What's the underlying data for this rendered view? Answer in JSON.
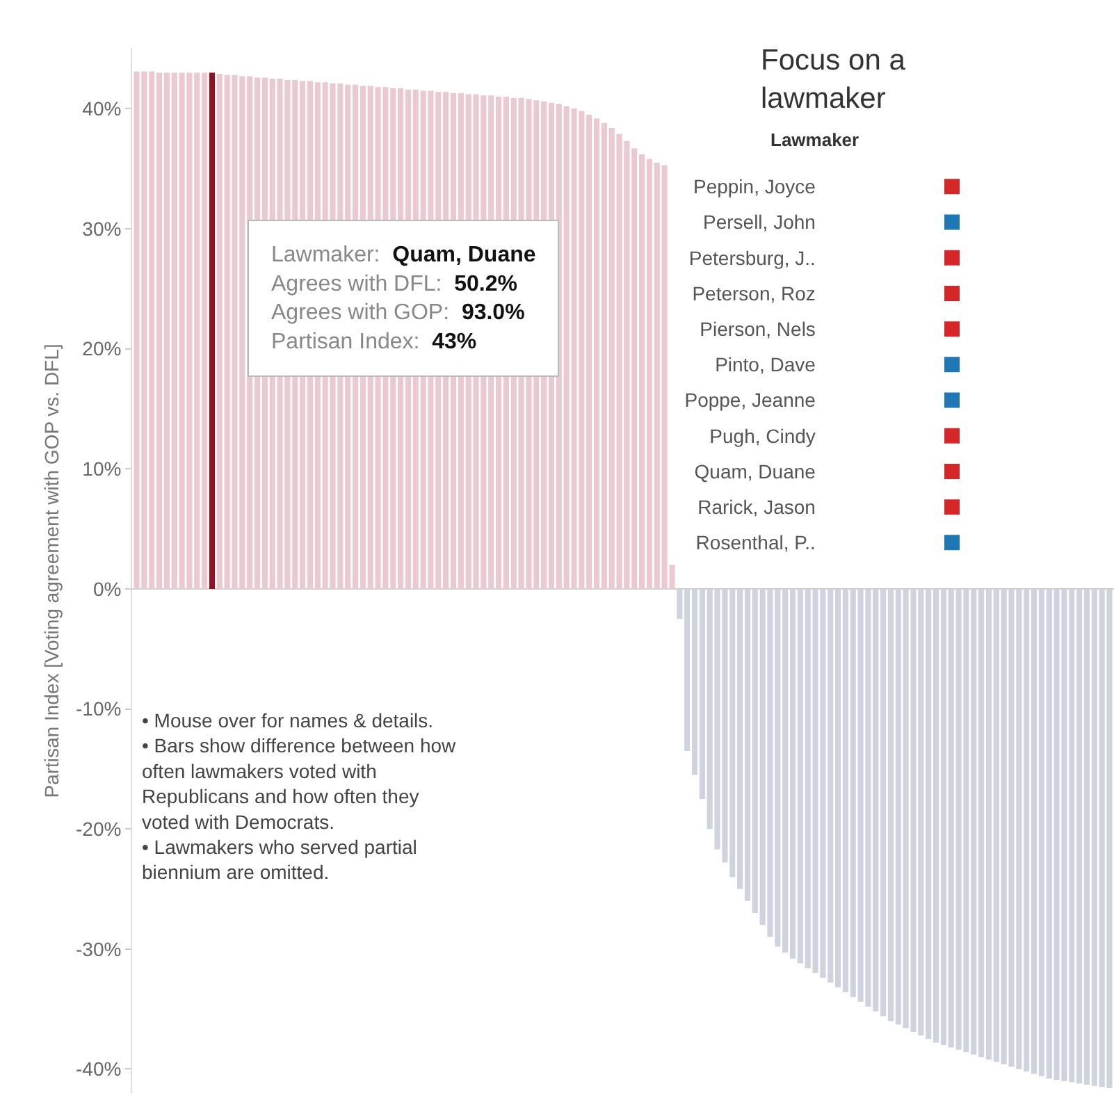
{
  "chart_data": [
    {
      "type": "bar",
      "ylabel": "Partisan Index [Voting agreement with GOP vs. DFL]",
      "categories": [
        null,
        null,
        null,
        null,
        null,
        null,
        null,
        null,
        null,
        null,
        null,
        null,
        null,
        null,
        null,
        null,
        null,
        null,
        null,
        null,
        null,
        null,
        null,
        null,
        null,
        null,
        null,
        null,
        null,
        null,
        null,
        null,
        null,
        null,
        null,
        null,
        null,
        null,
        null,
        null,
        null,
        null,
        null,
        null,
        null,
        null,
        null,
        null,
        null,
        null,
        null,
        null,
        null,
        null,
        null,
        null,
        null,
        null,
        null,
        null,
        null,
        null,
        null,
        null,
        null,
        null,
        null,
        null,
        null,
        null,
        null,
        null,
        null,
        null,
        null,
        null,
        null,
        null,
        null,
        null,
        null,
        null,
        null,
        null,
        null,
        null,
        null,
        null,
        null,
        null,
        null,
        null,
        null,
        null,
        null,
        null,
        null,
        null,
        null,
        null,
        null,
        null,
        null,
        null,
        null,
        null,
        null,
        null,
        null,
        null,
        null,
        null,
        null,
        null,
        null,
        null,
        null,
        null,
        null,
        null,
        null,
        null,
        null,
        null,
        null,
        null,
        null,
        null,
        null,
        null
      ],
      "values": [
        43.1,
        43.1,
        43.1,
        43.0,
        43.0,
        43.0,
        43.0,
        43.0,
        43.0,
        43.0,
        43.0,
        42.9,
        42.8,
        42.8,
        42.7,
        42.7,
        42.6,
        42.6,
        42.5,
        42.5,
        42.4,
        42.4,
        42.3,
        42.3,
        42.2,
        42.2,
        42.1,
        42.1,
        42.0,
        42.0,
        41.9,
        41.9,
        41.8,
        41.8,
        41.7,
        41.7,
        41.6,
        41.6,
        41.5,
        41.5,
        41.4,
        41.4,
        41.3,
        41.3,
        41.2,
        41.2,
        41.1,
        41.1,
        41.0,
        41.0,
        40.9,
        40.9,
        40.8,
        40.7,
        40.6,
        40.5,
        40.4,
        40.2,
        40.0,
        39.8,
        39.5,
        39.2,
        38.8,
        38.4,
        37.9,
        37.3,
        36.7,
        36.2,
        35.8,
        35.5,
        35.3,
        2.0,
        -2.5,
        -13.5,
        -15.5,
        -17.5,
        -20.0,
        -21.7,
        -22.8,
        -24.0,
        -25.0,
        -26.0,
        -27.0,
        -28.0,
        -29.0,
        -29.8,
        -30.3,
        -30.8,
        -31.2,
        -31.6,
        -32.0,
        -32.4,
        -32.8,
        -33.2,
        -33.6,
        -34.0,
        -34.4,
        -34.8,
        -35.2,
        -35.6,
        -36.0,
        -36.3,
        -36.6,
        -36.9,
        -37.2,
        -37.5,
        -37.8,
        -38.0,
        -38.2,
        -38.4,
        -38.6,
        -38.8,
        -39.0,
        -39.2,
        -39.4,
        -39.6,
        -39.8,
        -40.0,
        -40.2,
        -40.4,
        -40.6,
        -40.8,
        -40.9,
        -41.0,
        -41.1,
        -41.2,
        -41.3,
        -41.4,
        -41.5,
        -41.6
      ],
      "colors": [
        "#ebc9d0",
        "#ebc9d0",
        "#ebc9d0",
        "#ebc9d0",
        "#ebc9d0",
        "#ebc9d0",
        "#ebc9d0",
        "#ebc9d0",
        "#ebc9d0",
        "#ebc9d0",
        "#8e1228",
        "#ebc9d0",
        "#ebc9d0",
        "#ebc9d0",
        "#ebc9d0",
        "#ebc9d0",
        "#ebc9d0",
        "#ebc9d0",
        "#ebc9d0",
        "#ebc9d0",
        "#ebc9d0",
        "#ebc9d0",
        "#ebc9d0",
        "#ebc9d0",
        "#ebc9d0",
        "#ebc9d0",
        "#ebc9d0",
        "#ebc9d0",
        "#ebc9d0",
        "#ebc9d0",
        "#ebc9d0",
        "#ebc9d0",
        "#ebc9d0",
        "#ebc9d0",
        "#ebc9d0",
        "#ebc9d0",
        "#ebc9d0",
        "#ebc9d0",
        "#ebc9d0",
        "#ebc9d0",
        "#ebc9d0",
        "#ebc9d0",
        "#ebc9d0",
        "#ebc9d0",
        "#ebc9d0",
        "#ebc9d0",
        "#ebc9d0",
        "#ebc9d0",
        "#ebc9d0",
        "#ebc9d0",
        "#ebc9d0",
        "#ebc9d0",
        "#ebc9d0",
        "#ebc9d0",
        "#ebc9d0",
        "#ebc9d0",
        "#ebc9d0",
        "#ebc9d0",
        "#ebc9d0",
        "#ebc9d0",
        "#ebc9d0",
        "#ebc9d0",
        "#ebc9d0",
        "#ebc9d0",
        "#ebc9d0",
        "#ebc9d0",
        "#ebc9d0",
        "#ebc9d0",
        "#ebc9d0",
        "#ebc9d0",
        "#ebc9d0",
        "#ebc9d0",
        "#cfd3dd",
        "#cfd3dd",
        "#cfd3dd",
        "#cfd3dd",
        "#cfd3dd",
        "#cfd3dd",
        "#cfd3dd",
        "#cfd3dd",
        "#cfd3dd",
        "#cfd3dd",
        "#cfd3dd",
        "#cfd3dd",
        "#cfd3dd",
        "#cfd3dd",
        "#cfd3dd",
        "#cfd3dd",
        "#cfd3dd",
        "#cfd3dd",
        "#cfd3dd",
        "#cfd3dd",
        "#cfd3dd",
        "#cfd3dd",
        "#cfd3dd",
        "#cfd3dd",
        "#cfd3dd",
        "#cfd3dd",
        "#cfd3dd",
        "#cfd3dd",
        "#cfd3dd",
        "#cfd3dd",
        "#cfd3dd",
        "#cfd3dd",
        "#cfd3dd",
        "#cfd3dd",
        "#cfd3dd",
        "#cfd3dd",
        "#cfd3dd",
        "#cfd3dd",
        "#cfd3dd",
        "#cfd3dd",
        "#cfd3dd",
        "#cfd3dd",
        "#cfd3dd",
        "#cfd3dd",
        "#cfd3dd",
        "#cfd3dd",
        "#cfd3dd",
        "#cfd3dd",
        "#cfd3dd",
        "#cfd3dd",
        "#cfd3dd",
        "#cfd3dd",
        "#cfd3dd",
        "#cfd3dd",
        "#cfd3dd",
        "#cfd3dd",
        "#cfd3dd",
        "#cfd3dd"
      ],
      "ylim": [
        -42,
        45
      ],
      "yticks": [
        {
          "value": -40,
          "label": "-40%"
        },
        {
          "value": -30,
          "label": "-30%"
        },
        {
          "value": -20,
          "label": "-20%"
        },
        {
          "value": -10,
          "label": "-10%"
        },
        {
          "value": 0,
          "label": "0%"
        },
        {
          "value": 10,
          "label": "10%"
        },
        {
          "value": 20,
          "label": "20%"
        },
        {
          "value": 30,
          "label": "30%"
        },
        {
          "value": 40,
          "label": "40%"
        }
      ],
      "annotations": [
        "Lawmaker:",
        "Quam, Duane",
        "Agrees with DFL:",
        "50.2%",
        "Agrees with GOP:",
        "93.0%",
        "Partisan Index:",
        "43%",
        "• Mouse over for names & details.\n• Bars show difference between how\noften lawmakers voted with\nRepublicans and how often they\nvoted with Democrats.\n• Lawmakers who served partial\nbiennium are omitted."
      ]
    },
    {
      "type": "other",
      "title": "Focus on a\nlawmaker",
      "legend_title": "Lawmaker",
      "categories": [
        "Peppin, Joyce",
        "Persell, John",
        "Petersburg, J..",
        "Peterson, Roz",
        "Pierson, Nels",
        "Pinto, Dave",
        "Poppe, Jeanne",
        "Pugh, Cindy",
        "Quam, Duane",
        "Rarick, Jason",
        "Rosenthal, P.."
      ],
      "colors": [
        "#d62728",
        "#1f77b4",
        "#d62728",
        "#d62728",
        "#d62728",
        "#1f77b4",
        "#1f77b4",
        "#d62728",
        "#d62728",
        "#d62728",
        "#1f77b4"
      ]
    }
  ]
}
